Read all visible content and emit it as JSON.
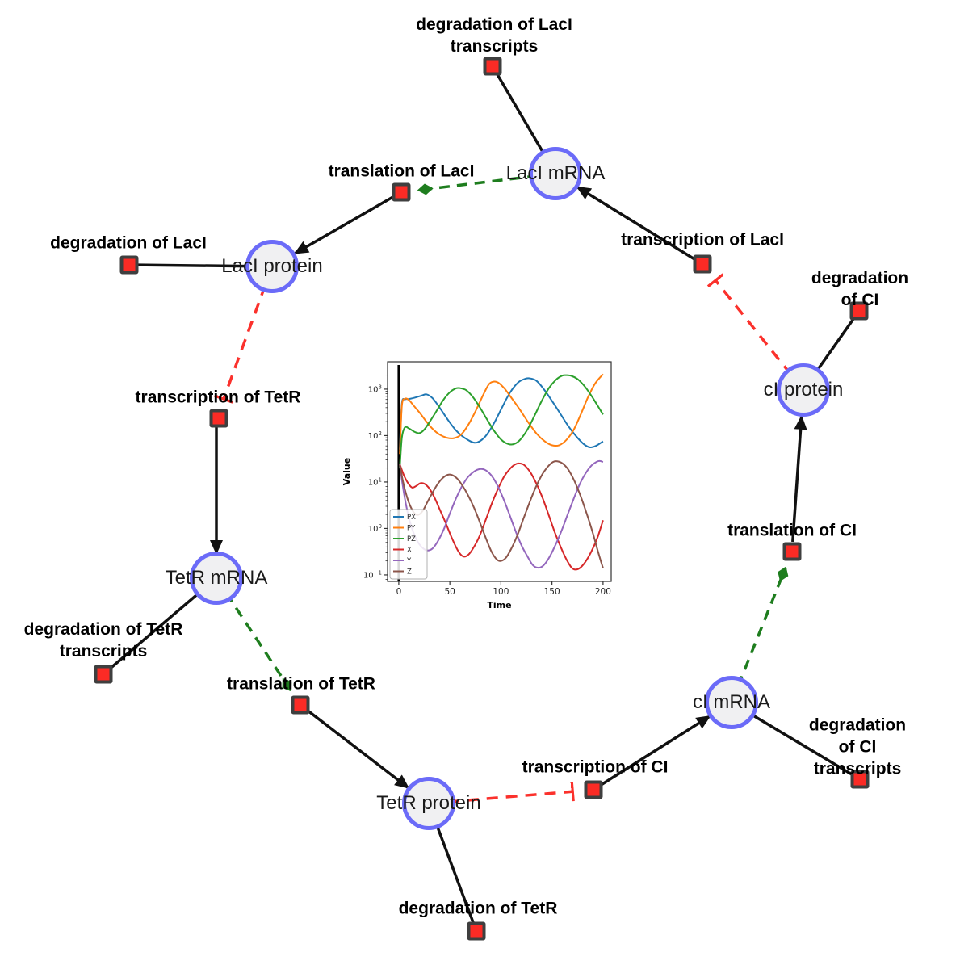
{
  "nodes": {
    "laci_mrna": {
      "label": "LacI mRNA"
    },
    "laci_protein": {
      "label": "LacI protein"
    },
    "tetr_mrna": {
      "label": "TetR mRNA"
    },
    "tetr_protein": {
      "label": "TetR protein"
    },
    "ci_mrna": {
      "label": "cI mRNA"
    },
    "ci_protein": {
      "label": "cI protein"
    }
  },
  "reactions": {
    "degradation_laci_transcripts": {
      "label": "degradation of LacI\ntranscripts"
    },
    "translation_laci": {
      "label": "translation of LacI"
    },
    "transcription_laci": {
      "label": "transcription of LacI"
    },
    "degradation_laci": {
      "label": "degradation of LacI"
    },
    "degradation_ci": {
      "label": "degradation of CI"
    },
    "transcription_tetr": {
      "label": "transcription of TetR"
    },
    "translation_ci": {
      "label": "translation of CI"
    },
    "degradation_tetr_transcripts": {
      "label": "degradation of TetR\ntranscripts"
    },
    "translation_tetr": {
      "label": "translation of TetR"
    },
    "transcription_ci": {
      "label": "transcription of CI"
    },
    "degradation_ci_transcripts": {
      "label": "degradation of CI\ntranscripts"
    },
    "degradation_tetr": {
      "label": "degradation of TetR"
    }
  },
  "colors": {
    "species_fill": "#f0f0f2",
    "species_border": "#6b6bf8",
    "reaction_fill": "#fb2b25",
    "reaction_border": "#3f3f3f",
    "edge_black": "#111111",
    "edge_green": "#1e7d1e",
    "edge_red": "#fb312c"
  },
  "chart_data": {
    "type": "line",
    "title": "",
    "xlabel": "Time",
    "ylabel": "Value",
    "yscale": "log",
    "xlim": [
      -11,
      208
    ],
    "ylim_log10": [
      -1.14,
      3.59
    ],
    "xticks": [
      0,
      50,
      100,
      150,
      200
    ],
    "yticks_log10": [
      -1,
      0,
      1,
      2,
      3
    ],
    "grid": false,
    "legend_position": "lower left",
    "axvline_x": 0,
    "series": [
      {
        "name": "PX",
        "color": "#1f77b4",
        "points": [
          [
            1,
            50
          ],
          [
            3,
            480
          ],
          [
            6,
            600
          ],
          [
            10,
            615
          ],
          [
            16,
            660
          ],
          [
            22,
            720
          ],
          [
            27,
            775
          ],
          [
            33,
            640
          ],
          [
            40,
            400
          ],
          [
            48,
            220
          ],
          [
            56,
            130
          ],
          [
            65,
            88
          ],
          [
            75,
            70
          ],
          [
            84,
            92
          ],
          [
            93,
            180
          ],
          [
            101,
            400
          ],
          [
            109,
            850
          ],
          [
            117,
            1400
          ],
          [
            124,
            1680
          ],
          [
            129,
            1700
          ],
          [
            135,
            1500
          ],
          [
            142,
            1000
          ],
          [
            150,
            560
          ],
          [
            158,
            300
          ],
          [
            166,
            160
          ],
          [
            174,
            95
          ],
          [
            181,
            66
          ],
          [
            187,
            56
          ],
          [
            193,
            60
          ],
          [
            200,
            75
          ]
        ]
      },
      {
        "name": "PY",
        "color": "#ff7f0e",
        "points": [
          [
            1,
            40
          ],
          [
            3,
            430
          ],
          [
            6,
            620
          ],
          [
            10,
            580
          ],
          [
            15,
            430
          ],
          [
            21,
            300
          ],
          [
            27,
            200
          ],
          [
            33,
            140
          ],
          [
            40,
            105
          ],
          [
            47,
            90
          ],
          [
            54,
            88
          ],
          [
            61,
            105
          ],
          [
            68,
            170
          ],
          [
            75,
            330
          ],
          [
            82,
            700
          ],
          [
            88,
            1250
          ],
          [
            93,
            1450
          ],
          [
            98,
            1350
          ],
          [
            104,
            1000
          ],
          [
            111,
            620
          ],
          [
            119,
            350
          ],
          [
            127,
            190
          ],
          [
            135,
            110
          ],
          [
            143,
            75
          ],
          [
            150,
            62
          ],
          [
            157,
            62
          ],
          [
            164,
            80
          ],
          [
            171,
            130
          ],
          [
            178,
            280
          ],
          [
            185,
            650
          ],
          [
            192,
            1300
          ],
          [
            200,
            2100
          ]
        ]
      },
      {
        "name": "PZ",
        "color": "#2ca02c",
        "points": [
          [
            1,
            20
          ],
          [
            3,
            90
          ],
          [
            6,
            150
          ],
          [
            10,
            142
          ],
          [
            15,
            122
          ],
          [
            20,
            113
          ],
          [
            25,
            135
          ],
          [
            31,
            210
          ],
          [
            37,
            340
          ],
          [
            43,
            560
          ],
          [
            50,
            860
          ],
          [
            56,
            1040
          ],
          [
            60,
            1050
          ],
          [
            66,
            950
          ],
          [
            72,
            700
          ],
          [
            79,
            420
          ],
          [
            86,
            230
          ],
          [
            93,
            130
          ],
          [
            100,
            83
          ],
          [
            107,
            66
          ],
          [
            113,
            66
          ],
          [
            119,
            82
          ],
          [
            126,
            135
          ],
          [
            133,
            270
          ],
          [
            140,
            560
          ],
          [
            147,
            1050
          ],
          [
            154,
            1600
          ],
          [
            160,
            1950
          ],
          [
            164,
            2000
          ],
          [
            169,
            1930
          ],
          [
            175,
            1650
          ],
          [
            182,
            1150
          ],
          [
            189,
            700
          ],
          [
            195,
            430
          ],
          [
            200,
            285
          ]
        ]
      },
      {
        "name": "X",
        "color": "#d62728",
        "points": [
          [
            1,
            24
          ],
          [
            5,
            14
          ],
          [
            9,
            9.5
          ],
          [
            13,
            7.6
          ],
          [
            17,
            8.2
          ],
          [
            21,
            9.4
          ],
          [
            25,
            9.2
          ],
          [
            30,
            7.2
          ],
          [
            35,
            4.6
          ],
          [
            40,
            2.6
          ],
          [
            46,
            1.3
          ],
          [
            52,
            0.62
          ],
          [
            58,
            0.33
          ],
          [
            63,
            0.25
          ],
          [
            68,
            0.27
          ],
          [
            73,
            0.38
          ],
          [
            79,
            0.68
          ],
          [
            85,
            1.5
          ],
          [
            91,
            3.4
          ],
          [
            97,
            7
          ],
          [
            103,
            13
          ],
          [
            109,
            19.5
          ],
          [
            114,
            24
          ],
          [
            118,
            25.2
          ],
          [
            123,
            23
          ],
          [
            129,
            16
          ],
          [
            135,
            9
          ],
          [
            141,
            4.4
          ],
          [
            147,
            1.9
          ],
          [
            153,
            0.8
          ],
          [
            159,
            0.38
          ],
          [
            164,
            0.22
          ],
          [
            169,
            0.145
          ],
          [
            173,
            0.13
          ],
          [
            178,
            0.145
          ],
          [
            184,
            0.21
          ],
          [
            190,
            0.37
          ],
          [
            195,
            0.68
          ],
          [
            200,
            1.5
          ]
        ]
      },
      {
        "name": "Y",
        "color": "#9467bd",
        "points": [
          [
            1,
            24
          ],
          [
            4,
            8
          ],
          [
            8,
            2.6
          ],
          [
            12,
            1.15
          ],
          [
            16,
            0.66
          ],
          [
            20,
            0.46
          ],
          [
            24,
            0.37
          ],
          [
            28,
            0.335
          ],
          [
            33,
            0.37
          ],
          [
            38,
            0.52
          ],
          [
            44,
            0.95
          ],
          [
            50,
            2.1
          ],
          [
            56,
            4.4
          ],
          [
            62,
            8.2
          ],
          [
            68,
            13
          ],
          [
            74,
            17
          ],
          [
            79,
            19
          ],
          [
            84,
            18.5
          ],
          [
            90,
            14.5
          ],
          [
            96,
            9
          ],
          [
            102,
            4.6
          ],
          [
            108,
            2.1
          ],
          [
            114,
            0.92
          ],
          [
            120,
            0.44
          ],
          [
            126,
            0.25
          ],
          [
            131,
            0.165
          ],
          [
            136,
            0.143
          ],
          [
            141,
            0.155
          ],
          [
            147,
            0.23
          ],
          [
            153,
            0.42
          ],
          [
            159,
            0.85
          ],
          [
            165,
            1.9
          ],
          [
            171,
            4.2
          ],
          [
            177,
            8.8
          ],
          [
            183,
            15.5
          ],
          [
            189,
            23
          ],
          [
            194,
            27.5
          ],
          [
            197,
            28.4
          ],
          [
            200,
            27
          ]
        ]
      },
      {
        "name": "Z",
        "color": "#8c564b",
        "points": [
          [
            1,
            24
          ],
          [
            4,
            10.5
          ],
          [
            8,
            4.8
          ],
          [
            12,
            2.8
          ],
          [
            16,
            2.05
          ],
          [
            20,
            2.0
          ],
          [
            24,
            2.5
          ],
          [
            28,
            3.7
          ],
          [
            33,
            5.9
          ],
          [
            38,
            9
          ],
          [
            43,
            12.2
          ],
          [
            48,
            14.3
          ],
          [
            52,
            14.2
          ],
          [
            57,
            12
          ],
          [
            62,
            8.6
          ],
          [
            68,
            5.1
          ],
          [
            74,
            2.7
          ],
          [
            80,
            1.25
          ],
          [
            86,
            0.56
          ],
          [
            91,
            0.31
          ],
          [
            96,
            0.215
          ],
          [
            100,
            0.2
          ],
          [
            105,
            0.235
          ],
          [
            110,
            0.36
          ],
          [
            116,
            0.7
          ],
          [
            122,
            1.6
          ],
          [
            128,
            3.6
          ],
          [
            134,
            7.6
          ],
          [
            140,
            14
          ],
          [
            146,
            21.5
          ],
          [
            151,
            27
          ],
          [
            155,
            28
          ],
          [
            160,
            25.5
          ],
          [
            166,
            18.5
          ],
          [
            172,
            10.5
          ],
          [
            178,
            5
          ],
          [
            184,
            2.1
          ],
          [
            190,
            0.8
          ],
          [
            195,
            0.32
          ],
          [
            200,
            0.14
          ]
        ]
      }
    ]
  }
}
